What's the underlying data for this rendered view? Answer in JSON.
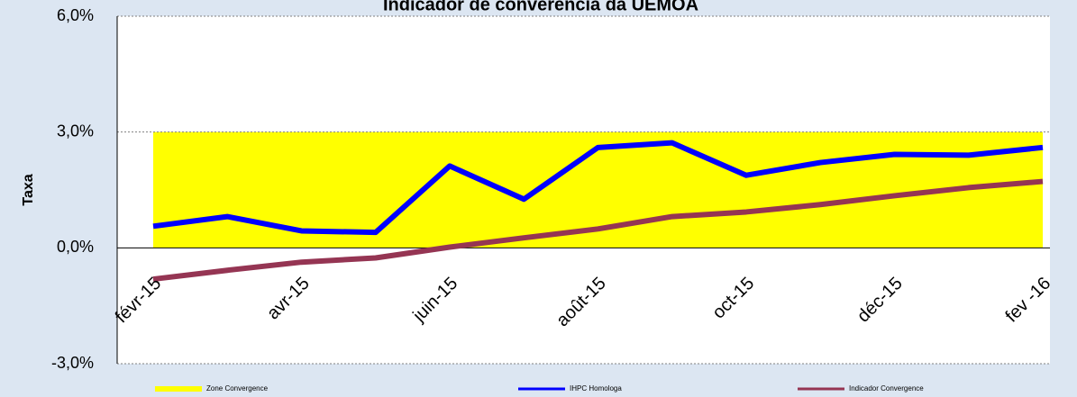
{
  "chart_data": {
    "type": "line",
    "title": "Indicador de converência da UEMOA",
    "y_label": "Taxa",
    "categories": [
      "févr-15",
      null,
      "avr-15",
      null,
      "juin-15",
      null,
      "août-15",
      null,
      "oct-15",
      null,
      "déc-15",
      null,
      "fev -16"
    ],
    "series": [
      {
        "name": "Zone Convergence",
        "color": "#ffff00",
        "area": true,
        "values": [
          3.0,
          3.0,
          3.0,
          3.0,
          3.0,
          3.0,
          3.0,
          3.0,
          3.0,
          3.0,
          3.0,
          3.0,
          3.0
        ]
      },
      {
        "name": "IHPC Homologa",
        "color": "#0000ff",
        "values": [
          0.56,
          0.81,
          0.44,
          0.4,
          2.12,
          1.26,
          2.6,
          2.72,
          1.88,
          2.21,
          2.42,
          2.4,
          2.6
        ]
      },
      {
        "name": "Indicador Convergence",
        "color": "#953553",
        "values": [
          -0.81,
          -0.58,
          -0.37,
          -0.26,
          0.02,
          0.26,
          0.49,
          0.81,
          0.93,
          1.12,
          1.35,
          1.56,
          1.72
        ]
      }
    ],
    "ylim": [
      -3,
      6
    ],
    "yticks": [
      {
        "value": -3,
        "label": "-3,0%"
      },
      {
        "value": 0,
        "label": "0,0%"
      },
      {
        "value": 3,
        "label": "3,0%"
      },
      {
        "value": 6,
        "label": "6,0%"
      }
    ],
    "grid": true
  }
}
